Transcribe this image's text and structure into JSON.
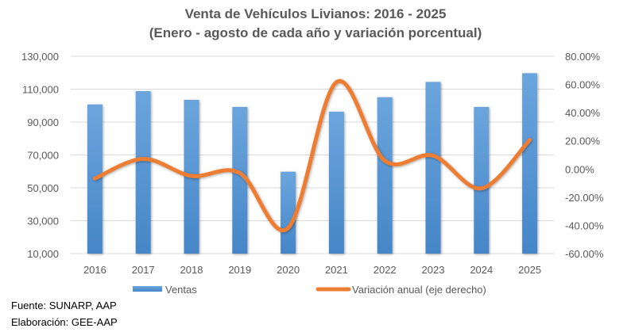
{
  "chart_data": {
    "type": "bar",
    "title": "Venta de Vehículos Livianos: 2016 - 2025",
    "subtitle": "(Enero - agosto de cada año y variación porcentual)",
    "categories": [
      "2016",
      "2017",
      "2018",
      "2019",
      "2020",
      "2021",
      "2022",
      "2023",
      "2024",
      "2025"
    ],
    "series": [
      {
        "name": "Ventas",
        "type": "bar",
        "axis": "left",
        "color": "#5B9BD5",
        "values": [
          100700,
          108800,
          103500,
          99200,
          59800,
          96300,
          105100,
          114400,
          99200,
          119700
        ]
      },
      {
        "name": "Variación anual (eje derecho)",
        "type": "line",
        "smooth": true,
        "axis": "right",
        "color": "#ED7D31",
        "values": [
          -6.7,
          7.2,
          -4.9,
          -2.9,
          -41.8,
          61.6,
          5.9,
          9.5,
          -13.7,
          20.7
        ]
      }
    ],
    "y_left": {
      "ylim": [
        10000,
        130000
      ],
      "ticks": [
        10000,
        30000,
        50000,
        70000,
        90000,
        110000,
        130000
      ],
      "tick_labels": [
        "10,000",
        "30,000",
        "50,000",
        "70,000",
        "90,000",
        "110,000",
        "130,000"
      ]
    },
    "y_right": {
      "ylim": [
        -60,
        80
      ],
      "ticks": [
        -60,
        -40,
        -20,
        0,
        20,
        40,
        60,
        80
      ],
      "tick_labels": [
        "-60.00%",
        "-40.00%",
        "-20.00%",
        "0.00%",
        "20.00%",
        "40.00%",
        "60.00%",
        "80.00%"
      ]
    },
    "xlabel": "",
    "ylabel": "",
    "grid": true,
    "legend": {
      "position": "bottom",
      "entries": [
        "Ventas",
        "Variación anual (eje derecho)"
      ]
    }
  },
  "footer": {
    "source": "Fuente: SUNARP, AAP",
    "elaboration": "Elaboración: GEE-AAP"
  }
}
